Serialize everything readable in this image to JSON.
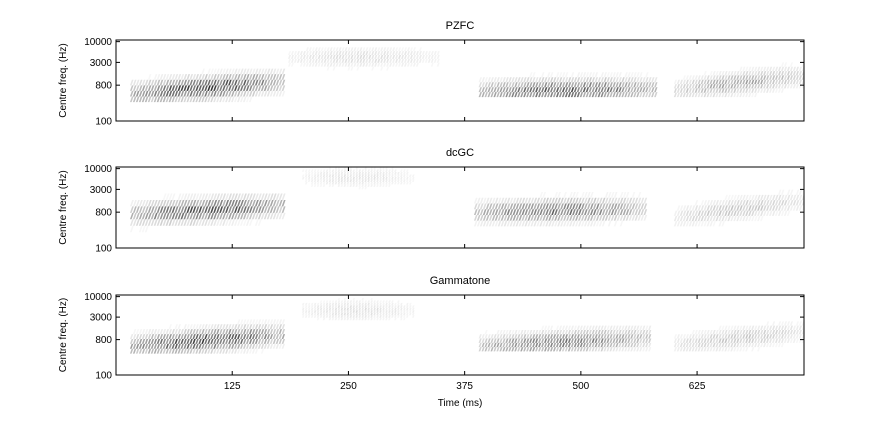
{
  "chart_data": [
    {
      "type": "heatmap",
      "title": "PZFC",
      "ylabel": "Centre freq. (Hz)",
      "xlabel": "",
      "y_scale": "log",
      "y_ticks": [
        100,
        800,
        3000,
        10000
      ],
      "y_tick_labels": [
        "100",
        "800",
        "3000",
        "10000"
      ],
      "x_ticks": [
        125,
        250,
        375,
        500,
        625
      ],
      "x_tick_labels": [
        "",
        "",
        "",
        "",
        ""
      ],
      "xlim": [
        0,
        740
      ],
      "colormap": "gray_reversed",
      "segments": [
        {
          "t_start": 15,
          "t_end": 180,
          "f_low": 300,
          "f_high": 4000,
          "f_peak_start": 500,
          "f_peak_end": 1000,
          "intensity": 0.85
        },
        {
          "t_start": 185,
          "t_end": 345,
          "f_low": 1500,
          "f_high": 9000,
          "f_peak_start": 4000,
          "f_peak_end": 4000,
          "intensity": 0.15
        },
        {
          "t_start": 390,
          "t_end": 580,
          "f_low": 400,
          "f_high": 4000,
          "f_peak_start": 550,
          "f_peak_end": 650,
          "intensity": 0.75
        },
        {
          "t_start": 600,
          "t_end": 740,
          "f_low": 400,
          "f_high": 3000,
          "f_peak_start": 600,
          "f_peak_end": 1400,
          "intensity": 0.4
        }
      ]
    },
    {
      "type": "heatmap",
      "title": "dcGC",
      "ylabel": "Centre freq. (Hz)",
      "xlabel": "",
      "y_scale": "log",
      "y_ticks": [
        100,
        800,
        3000,
        10000
      ],
      "y_tick_labels": [
        "100",
        "800",
        "3000",
        "10000"
      ],
      "x_ticks": [
        125,
        250,
        375,
        500,
        625
      ],
      "x_tick_labels": [
        "",
        "",
        "",
        "",
        ""
      ],
      "xlim": [
        0,
        740
      ],
      "colormap": "gray_reversed",
      "segments": [
        {
          "t_start": 15,
          "t_end": 180,
          "f_low": 250,
          "f_high": 5000,
          "f_peak_start": 700,
          "f_peak_end": 1200,
          "intensity": 0.8
        },
        {
          "t_start": 200,
          "t_end": 320,
          "f_low": 3000,
          "f_high": 9500,
          "f_peak_start": 6000,
          "f_peak_end": 6000,
          "intensity": 0.12
        },
        {
          "t_start": 385,
          "t_end": 570,
          "f_low": 350,
          "f_high": 5000,
          "f_peak_start": 800,
          "f_peak_end": 1000,
          "intensity": 0.65
        },
        {
          "t_start": 600,
          "t_end": 740,
          "f_low": 350,
          "f_high": 4000,
          "f_peak_start": 600,
          "f_peak_end": 1600,
          "intensity": 0.25
        }
      ]
    },
    {
      "type": "heatmap",
      "title": "Gammatone",
      "ylabel": "Centre freq. (Hz)",
      "xlabel": "Time (ms)",
      "y_scale": "log",
      "y_ticks": [
        100,
        800,
        3000,
        10000
      ],
      "y_tick_labels": [
        "100",
        "800",
        "3000",
        "10000"
      ],
      "x_ticks": [
        125,
        250,
        375,
        500,
        625
      ],
      "x_tick_labels": [
        "125",
        "250",
        "375",
        "500",
        "625"
      ],
      "xlim": [
        0,
        740
      ],
      "colormap": "gray_reversed",
      "segments": [
        {
          "t_start": 15,
          "t_end": 180,
          "f_low": 350,
          "f_high": 3500,
          "f_peak_start": 550,
          "f_peak_end": 1100,
          "intensity": 0.85
        },
        {
          "t_start": 200,
          "t_end": 320,
          "f_low": 2500,
          "f_high": 8000,
          "f_peak_start": 4500,
          "f_peak_end": 4500,
          "intensity": 0.15
        },
        {
          "t_start": 390,
          "t_end": 575,
          "f_low": 400,
          "f_high": 3000,
          "f_peak_start": 550,
          "f_peak_end": 900,
          "intensity": 0.6
        },
        {
          "t_start": 600,
          "t_end": 740,
          "f_low": 400,
          "f_high": 3000,
          "f_peak_start": 600,
          "f_peak_end": 1300,
          "intensity": 0.25
        }
      ]
    }
  ]
}
